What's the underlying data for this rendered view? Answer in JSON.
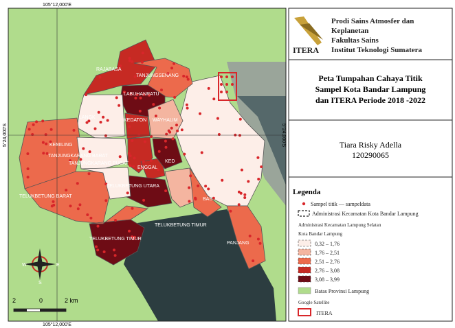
{
  "map": {
    "coords": {
      "top": "105°12,000'E",
      "bottom": "105°12,000'E",
      "left": "5°24,000'S",
      "right": "5°24,000'S"
    },
    "districts": [
      "RAJABASA",
      "TANJUNGSENANG",
      "LABUHANRATU",
      "LANGK",
      "KEDATON",
      "WAYHALIM",
      "KEMILING",
      "TANJUNGKARANG BARAT",
      "TANJUNGKARANG PUSAT",
      "ENGGAL",
      "KED",
      "TELUKBETUNG UTARA",
      "TELUKBETUNG BARAT",
      "BAS",
      "TELUKBETUNG TIMUR",
      "TELUKBETUNG TIMUR",
      "PANJANG"
    ],
    "scale": [
      "2",
      "0",
      "2 km"
    ],
    "compass": [
      "W",
      "E",
      "S"
    ]
  },
  "panel": {
    "institution": [
      "Prodi Sains Atmosfer dan",
      "Keplanetan",
      "Fakultas Sains",
      "Institut Teknologi Sumatera"
    ],
    "logo": "ITERA",
    "title": [
      "Peta Tumpahan Cahaya Titik",
      "Sampel Kota Bandar Lampung",
      "dan ITERA Periode 2018 -2022"
    ],
    "author": "Tiara Risky Adella",
    "nim": "120290065"
  },
  "legend": {
    "title": "Legenda",
    "points": "Sampel titik — sampeldata",
    "admin_kota": "Administrasi Kecamatan Kota Bandar Lampung",
    "admin_selatan": "Administrasi Kecamatan Lampung Selatan",
    "kota": "Kota Bandar Lampung",
    "classes": [
      {
        "label": "0,32 – 1,76",
        "color": "#fdeee8"
      },
      {
        "label": "1,76 – 2,51",
        "color": "#f4b5a0"
      },
      {
        "label": "2,51 – 2,76",
        "color": "#ec6a4c"
      },
      {
        "label": "2,76 – 3,08",
        "color": "#c62a23"
      },
      {
        "label": "3,08 – 3,99",
        "color": "#6e0c15"
      }
    ],
    "batas": "Batas Provinsi Lampung",
    "satellite": "Google Satellite",
    "itera": "ITERA"
  }
}
